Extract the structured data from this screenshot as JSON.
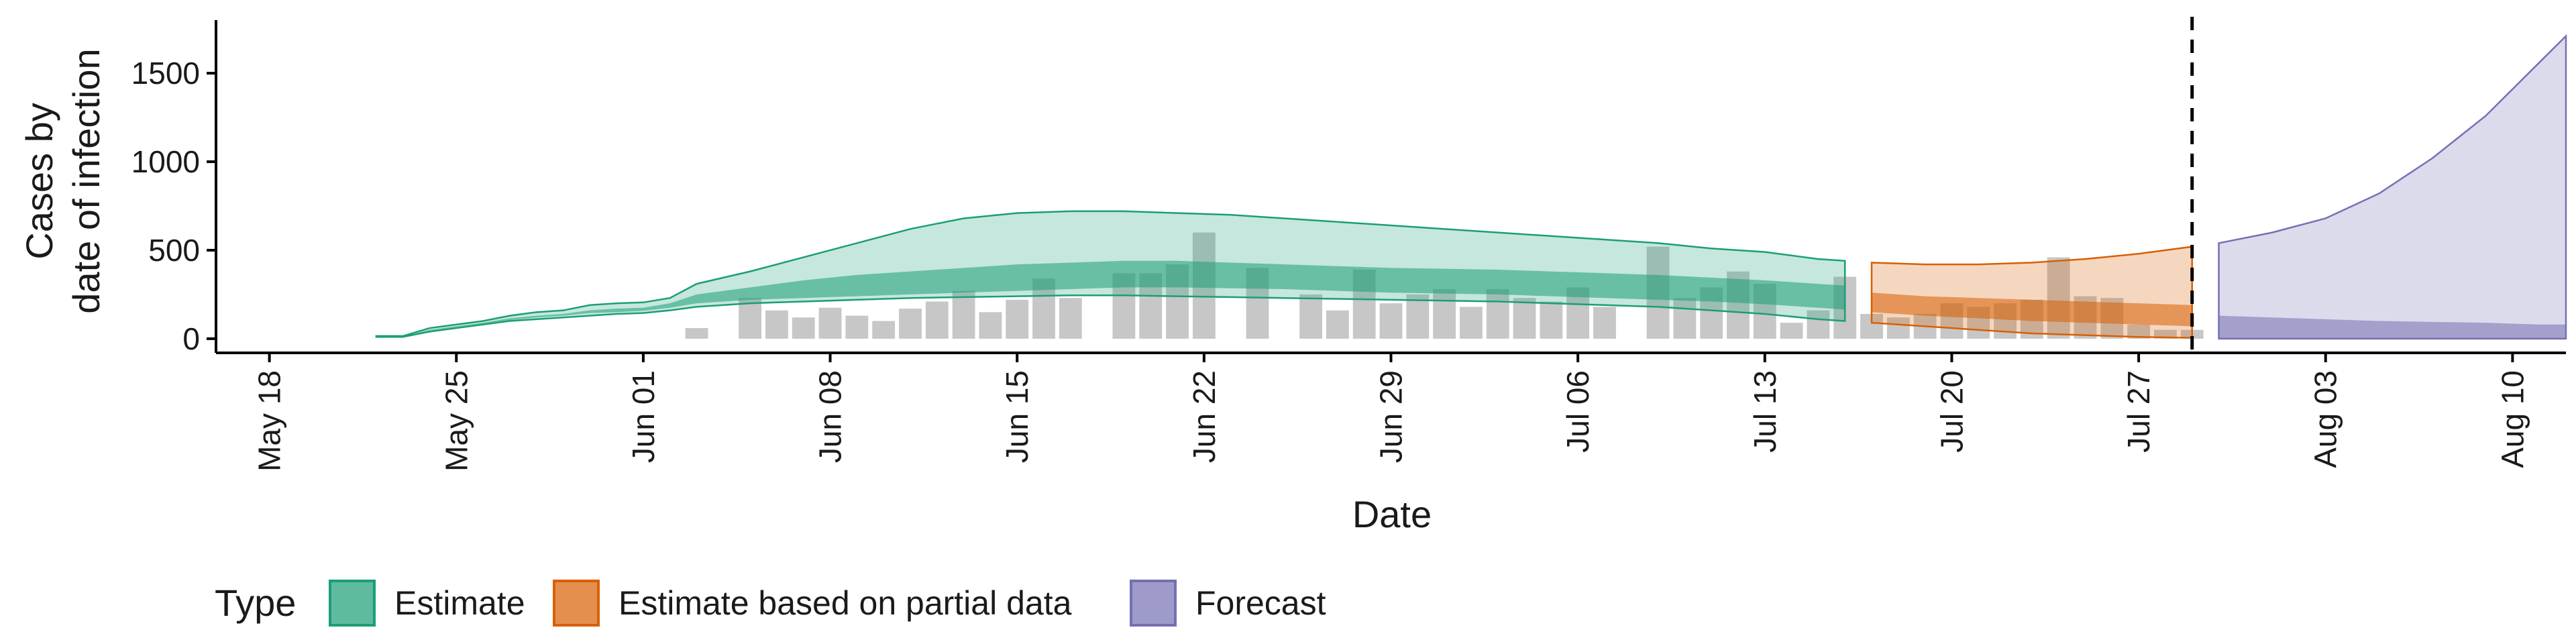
{
  "colors": {
    "estimate": "#1b9e77",
    "partial": "#d95f02",
    "forecast": "#7570b3",
    "observed": "#bdbdbd"
  },
  "chart_data": {
    "type": "area",
    "xlabel": "Date",
    "ylabel_lines": [
      "Cases by",
      "date of infection"
    ],
    "x_ticks": [
      "May 18",
      "May 25",
      "Jun 01",
      "Jun 08",
      "Jun 15",
      "Jun 22",
      "Jun 29",
      "Jul 06",
      "Jul 13",
      "Jul 20",
      "Jul 27",
      "Aug 03",
      "Aug 10"
    ],
    "y_ticks": [
      0,
      500,
      1000,
      1500
    ],
    "ylim": [
      -80,
      1800
    ],
    "xlim_days": [
      -2.0,
      86.0
    ],
    "grid": false,
    "legend_placement": "bottom",
    "legend": {
      "title": "Type",
      "entries": [
        "Estimate",
        "Estimate based on partial data",
        "Forecast"
      ]
    },
    "reference_line": {
      "date": "Jul 29",
      "style": "dashed"
    },
    "observed_cases": {
      "dates": [
        "Jun 03",
        "Jun 05",
        "Jun 06",
        "Jun 07",
        "Jun 08",
        "Jun 09",
        "Jun 10",
        "Jun 11",
        "Jun 12",
        "Jun 13",
        "Jun 14",
        "Jun 15",
        "Jun 16",
        "Jun 17",
        "Jun 19",
        "Jun 20",
        "Jun 21",
        "Jun 22",
        "Jun 24",
        "Jun 26",
        "Jun 27",
        "Jun 28",
        "Jun 29",
        "Jun 30",
        "Jul 01",
        "Jul 02",
        "Jul 03",
        "Jul 04",
        "Jul 05",
        "Jul 06",
        "Jul 07",
        "Jul 09",
        "Jul 10",
        "Jul 11",
        "Jul 12",
        "Jul 13",
        "Jul 14",
        "Jul 15",
        "Jul 16",
        "Jul 17",
        "Jul 18",
        "Jul 19",
        "Jul 20",
        "Jul 21",
        "Jul 22",
        "Jul 23",
        "Jul 24",
        "Jul 25",
        "Jul 26",
        "Jul 27",
        "Jul 28",
        "Jul 29"
      ],
      "values": [
        60,
        230,
        160,
        120,
        175,
        130,
        100,
        170,
        210,
        270,
        150,
        220,
        340,
        230,
        370,
        370,
        420,
        600,
        400,
        250,
        160,
        390,
        200,
        250,
        280,
        180,
        280,
        230,
        210,
        290,
        180,
        520,
        230,
        290,
        380,
        310,
        90,
        160,
        350,
        140,
        120,
        140,
        200,
        180,
        200,
        220,
        460,
        240,
        230,
        80,
        50,
        50
      ]
    },
    "series": [
      {
        "name": "Estimate",
        "dates": [
          "May 22",
          "May 23",
          "May 24",
          "May 25",
          "May 26",
          "May 27",
          "May 28",
          "May 29",
          "May 30",
          "May 31",
          "Jun 01",
          "Jun 02",
          "Jun 03",
          "Jun 05",
          "Jun 07",
          "Jun 09",
          "Jun 11",
          "Jun 13",
          "Jun 15",
          "Jun 17",
          "Jun 19",
          "Jun 21",
          "Jun 23",
          "Jun 25",
          "Jun 27",
          "Jun 29",
          "Jul 01",
          "Jul 03",
          "Jul 05",
          "Jul 07",
          "Jul 09",
          "Jul 11",
          "Jul 13",
          "Jul 15",
          "Jul 16"
        ],
        "outer_upper": [
          15,
          15,
          60,
          80,
          100,
          130,
          150,
          160,
          190,
          200,
          205,
          230,
          310,
          380,
          460,
          540,
          620,
          680,
          710,
          720,
          720,
          710,
          700,
          680,
          660,
          640,
          620,
          600,
          580,
          560,
          540,
          510,
          490,
          450,
          440
        ],
        "outer_lower": [
          10,
          10,
          40,
          60,
          80,
          100,
          110,
          120,
          130,
          140,
          145,
          160,
          180,
          200,
          210,
          220,
          230,
          235,
          240,
          245,
          245,
          240,
          235,
          230,
          225,
          220,
          215,
          210,
          200,
          190,
          180,
          160,
          140,
          110,
          100
        ],
        "inner_upper": [
          12,
          12,
          50,
          70,
          90,
          115,
          130,
          140,
          160,
          170,
          175,
          200,
          250,
          290,
          330,
          360,
          380,
          400,
          420,
          430,
          440,
          440,
          430,
          420,
          410,
          400,
          395,
          390,
          380,
          370,
          360,
          345,
          330,
          310,
          300
        ],
        "inner_lower": [
          11,
          11,
          45,
          65,
          85,
          105,
          120,
          130,
          145,
          150,
          158,
          175,
          200,
          220,
          230,
          240,
          250,
          260,
          270,
          280,
          290,
          290,
          285,
          280,
          270,
          260,
          255,
          250,
          240,
          230,
          220,
          210,
          195,
          175,
          165
        ]
      },
      {
        "name": "Estimate based on partial data",
        "dates": [
          "Jul 17",
          "Jul 19",
          "Jul 21",
          "Jul 23",
          "Jul 25",
          "Jul 27",
          "Jul 29"
        ],
        "outer_upper": [
          430,
          420,
          420,
          430,
          450,
          480,
          520
        ],
        "outer_lower": [
          90,
          70,
          50,
          30,
          20,
          10,
          5
        ],
        "inner_upper": [
          260,
          240,
          230,
          220,
          210,
          200,
          190
        ],
        "inner_lower": [
          150,
          130,
          115,
          100,
          90,
          80,
          70
        ]
      },
      {
        "name": "Forecast",
        "dates": [
          "Jul 30",
          "Aug 01",
          "Aug 03",
          "Aug 05",
          "Aug 07",
          "Aug 09",
          "Aug 11",
          "Aug 12"
        ],
        "outer_upper": [
          540,
          600,
          680,
          820,
          1020,
          1260,
          1560,
          1710
        ],
        "outer_lower": [
          0,
          0,
          0,
          0,
          0,
          0,
          0,
          0
        ],
        "inner_upper": [
          130,
          120,
          110,
          100,
          95,
          90,
          80,
          80
        ],
        "inner_lower": [
          0,
          0,
          0,
          0,
          0,
          0,
          0,
          0
        ]
      }
    ]
  }
}
